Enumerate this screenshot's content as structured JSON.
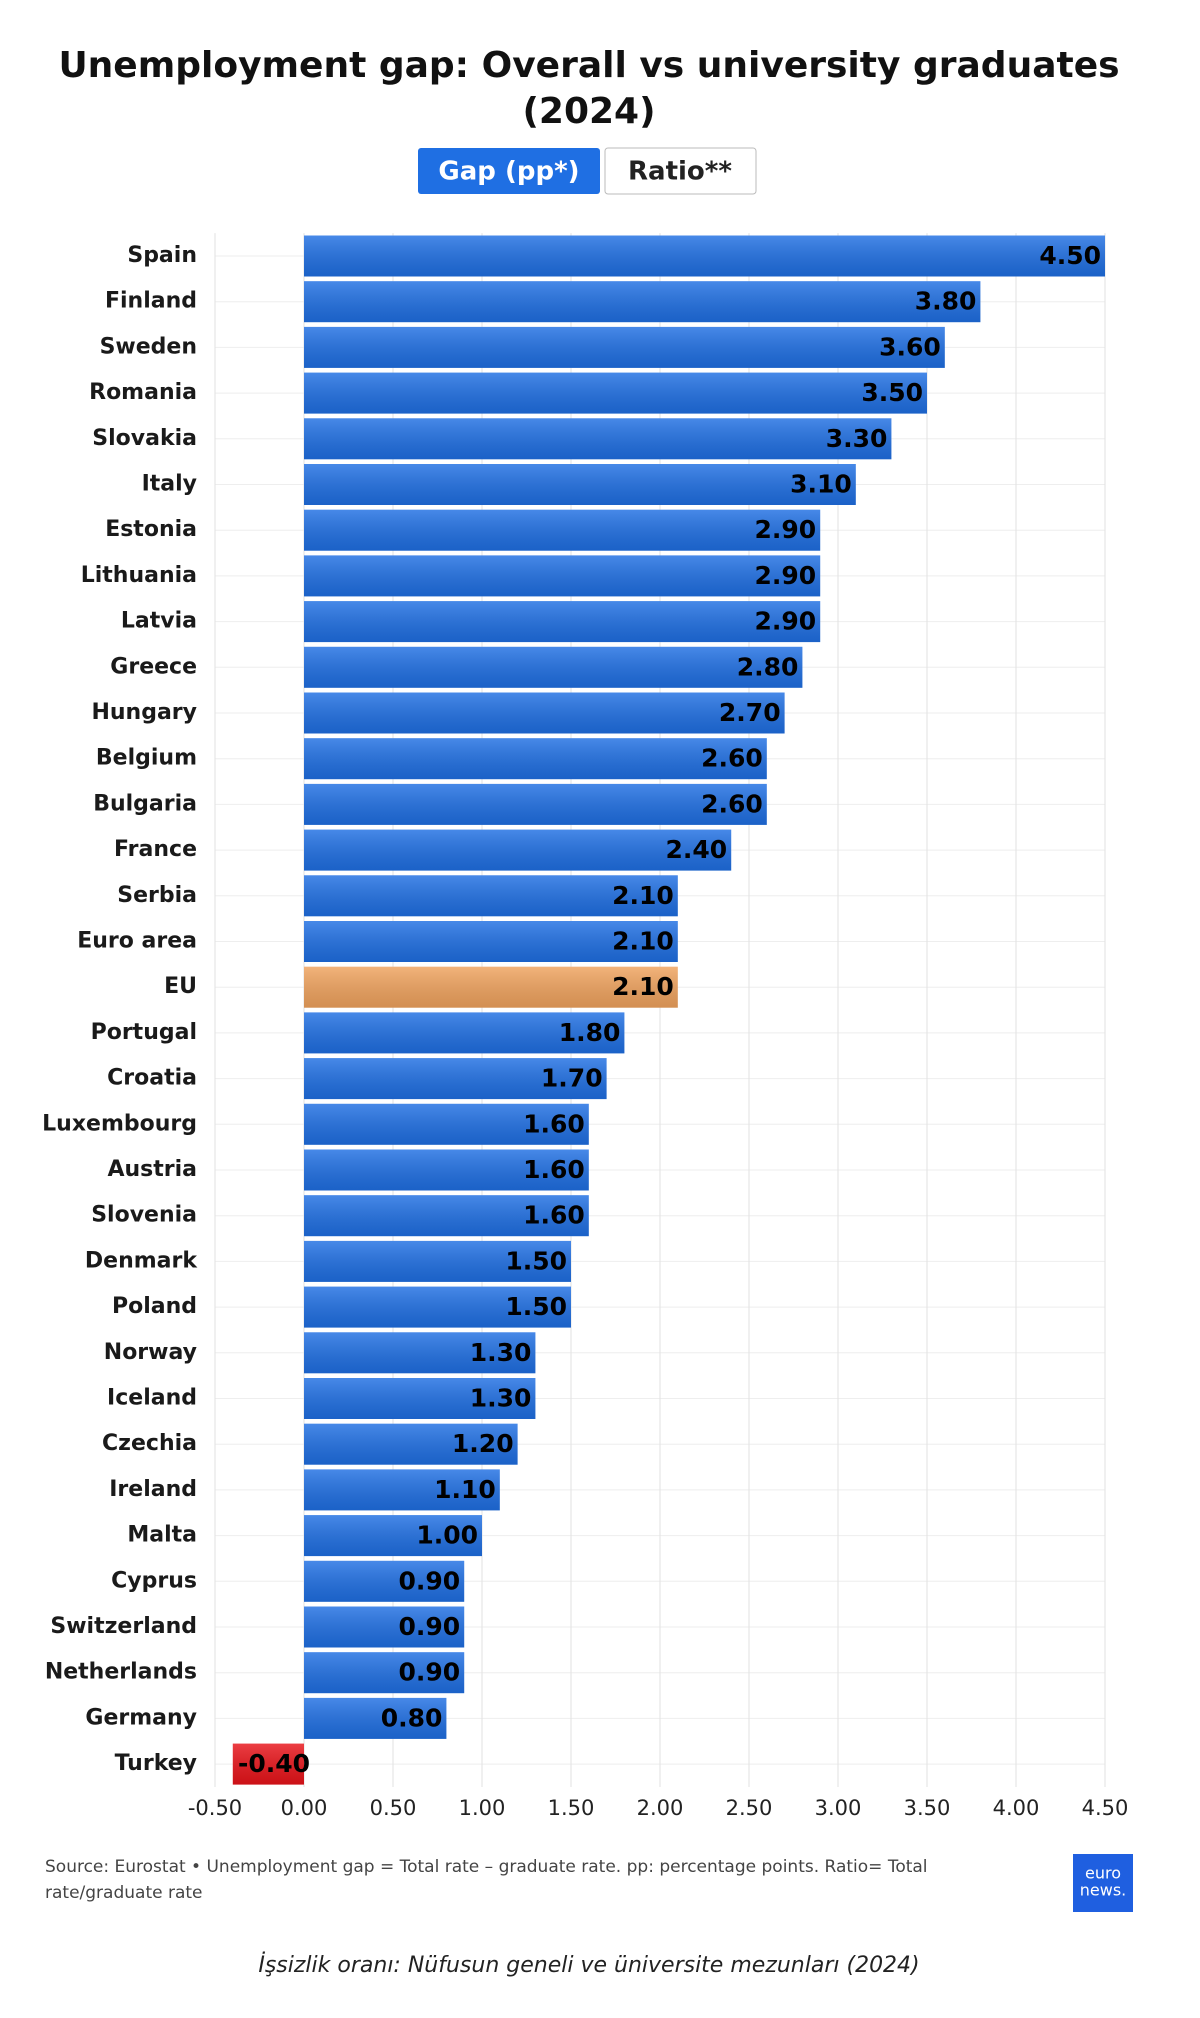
{
  "chart_data": {
    "type": "barh",
    "title": [
      "Unemployment gap: Overall vs university graduates",
      "(2024)"
    ],
    "buttons": [
      "Gap (pp*)",
      "Ratio**"
    ],
    "categories": [
      "Spain",
      "Finland",
      "Sweden",
      "Romania",
      "Slovakia",
      "Italy",
      "Estonia",
      "Lithuania",
      "Latvia",
      "Greece",
      "Hungary",
      "Belgium",
      "Bulgaria",
      "France",
      "Serbia",
      "Euro area",
      "EU",
      "Portugal",
      "Croatia",
      "Luxembourg",
      "Austria",
      "Slovenia",
      "Denmark",
      "Poland",
      "Norway",
      "Iceland",
      "Czechia",
      "Ireland",
      "Malta",
      "Cyprus",
      "Switzerland",
      "Netherlands",
      "Germany",
      "Turkey"
    ],
    "values": [
      4.5,
      3.8,
      3.6,
      3.5,
      3.3,
      3.1,
      2.9,
      2.9,
      2.9,
      2.8,
      2.7,
      2.6,
      2.6,
      2.4,
      2.1,
      2.1,
      2.1,
      1.8,
      1.7,
      1.6,
      1.6,
      1.6,
      1.5,
      1.5,
      1.3,
      1.3,
      1.2,
      1.1,
      1.0,
      0.9,
      0.9,
      0.9,
      0.8,
      -0.4
    ],
    "value_labels": [
      "4.50",
      "3.80",
      "3.60",
      "3.50",
      "3.30",
      "3.10",
      "2.90",
      "2.90",
      "2.90",
      "2.80",
      "2.70",
      "2.60",
      "2.60",
      "2.40",
      "2.10",
      "2.10",
      "2.10",
      "1.80",
      "1.70",
      "1.60",
      "1.60",
      "1.60",
      "1.50",
      "1.50",
      "1.30",
      "1.30",
      "1.20",
      "1.10",
      "1.00",
      "0.90",
      "0.90",
      "0.90",
      "0.80",
      "-0.40"
    ],
    "color": "#1f6fe3",
    "highlight_colors": {
      "EU": "#f0a35e",
      "Turkey": "#e8141a"
    },
    "xlim": [
      -0.5,
      4.5
    ],
    "xticks": [
      {
        "value": -0.5,
        "label": "-0.50"
      },
      {
        "value": 0,
        "label": "0.00"
      },
      {
        "value": 0.5,
        "label": "0.50"
      },
      {
        "value": 1,
        "label": "1.00"
      },
      {
        "value": 1.5,
        "label": "1.50"
      },
      {
        "value": 2,
        "label": "2.00"
      },
      {
        "value": 2.5,
        "label": "2.50"
      },
      {
        "value": 3,
        "label": "3.00"
      },
      {
        "value": 3.5,
        "label": "3.50"
      },
      {
        "value": 4,
        "label": "4.00"
      },
      {
        "value": 4.5,
        "label": "4.50"
      }
    ],
    "grid": true,
    "note": [
      "Source: Eurostat • Unemployment gap = Total rate – graduate rate. pp: percentage points. Ratio= Total",
      "rate/graduate rate"
    ],
    "logo": [
      "euro",
      "news."
    ],
    "caption": "İşsizlik oranı: Nüfusun geneli ve üniversite mezunları (2024)"
  }
}
